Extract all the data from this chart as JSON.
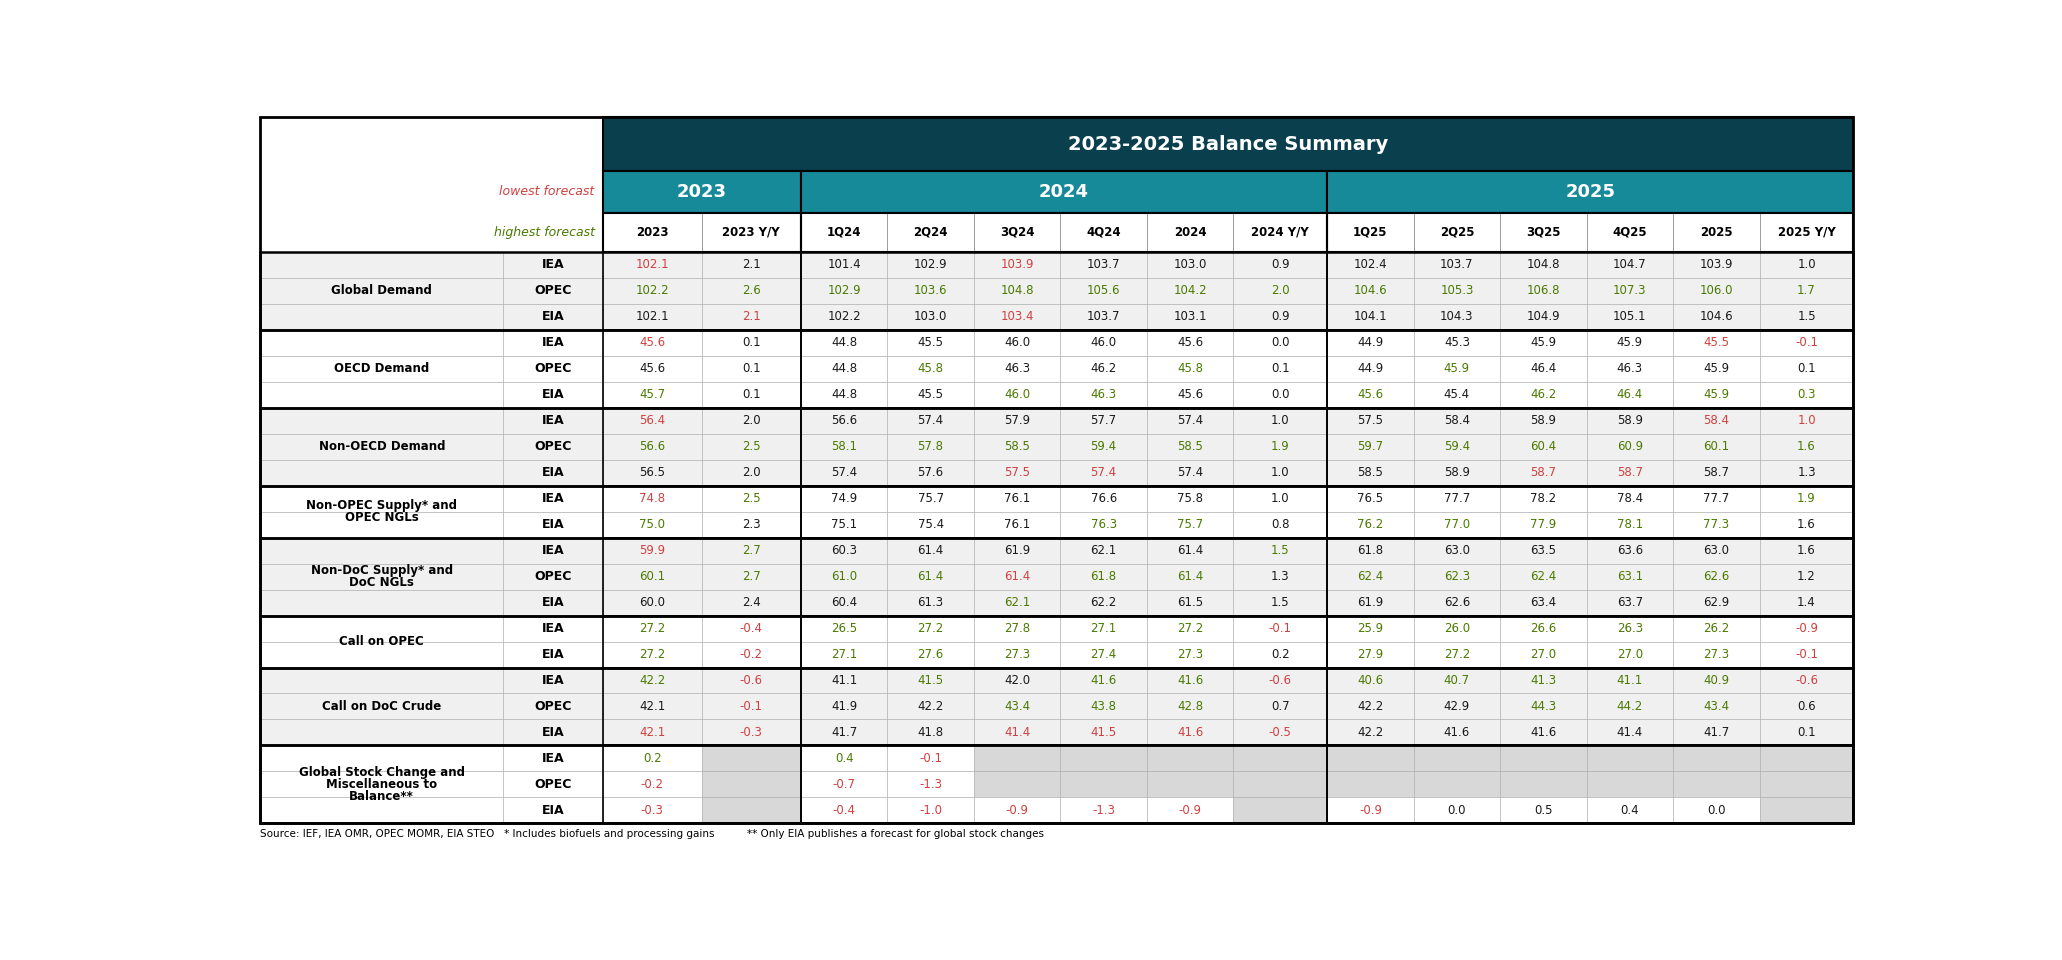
{
  "title": "2023-2025 Balance Summary",
  "lowest_label": "lowest forecast",
  "highest_label": "highest forecast",
  "sections": [
    {
      "label": "Global Demand",
      "rows": [
        {
          "agency": "IEA",
          "vals": [
            "102.1",
            "2.1",
            "101.4",
            "102.9",
            "103.9",
            "103.7",
            "103.0",
            "0.9",
            "102.4",
            "103.7",
            "104.8",
            "104.7",
            "103.9",
            "1.0"
          ],
          "colors": [
            "red",
            "black",
            "black",
            "black",
            "red",
            "black",
            "black",
            "black",
            "black",
            "black",
            "black",
            "black",
            "black",
            "black"
          ]
        },
        {
          "agency": "OPEC",
          "vals": [
            "102.2",
            "2.6",
            "102.9",
            "103.6",
            "104.8",
            "105.6",
            "104.2",
            "2.0",
            "104.6",
            "105.3",
            "106.8",
            "107.3",
            "106.0",
            "1.7"
          ],
          "colors": [
            "green",
            "green",
            "green",
            "green",
            "green",
            "green",
            "green",
            "green",
            "green",
            "green",
            "green",
            "green",
            "green",
            "green"
          ]
        },
        {
          "agency": "EIA",
          "vals": [
            "102.1",
            "2.1",
            "102.2",
            "103.0",
            "103.4",
            "103.7",
            "103.1",
            "0.9",
            "104.1",
            "104.3",
            "104.9",
            "105.1",
            "104.6",
            "1.5"
          ],
          "colors": [
            "black",
            "red",
            "black",
            "black",
            "red",
            "black",
            "black",
            "black",
            "black",
            "black",
            "black",
            "black",
            "black",
            "black"
          ]
        }
      ]
    },
    {
      "label": "OECD Demand",
      "rows": [
        {
          "agency": "IEA",
          "vals": [
            "45.6",
            "0.1",
            "44.8",
            "45.5",
            "46.0",
            "46.0",
            "45.6",
            "0.0",
            "44.9",
            "45.3",
            "45.9",
            "45.9",
            "45.5",
            "-0.1"
          ],
          "colors": [
            "red",
            "black",
            "black",
            "black",
            "black",
            "black",
            "black",
            "black",
            "black",
            "black",
            "black",
            "black",
            "red",
            "red"
          ]
        },
        {
          "agency": "OPEC",
          "vals": [
            "45.6",
            "0.1",
            "44.8",
            "45.8",
            "46.3",
            "46.2",
            "45.8",
            "0.1",
            "44.9",
            "45.9",
            "46.4",
            "46.3",
            "45.9",
            "0.1"
          ],
          "colors": [
            "black",
            "black",
            "black",
            "green",
            "black",
            "black",
            "green",
            "black",
            "black",
            "green",
            "black",
            "black",
            "black",
            "black"
          ]
        },
        {
          "agency": "EIA",
          "vals": [
            "45.7",
            "0.1",
            "44.8",
            "45.5",
            "46.0",
            "46.3",
            "45.6",
            "0.0",
            "45.6",
            "45.4",
            "46.2",
            "46.4",
            "45.9",
            "0.3"
          ],
          "colors": [
            "green",
            "black",
            "black",
            "black",
            "green",
            "green",
            "black",
            "black",
            "green",
            "black",
            "green",
            "green",
            "green",
            "green"
          ]
        }
      ]
    },
    {
      "label": "Non-OECD Demand",
      "rows": [
        {
          "agency": "IEA",
          "vals": [
            "56.4",
            "2.0",
            "56.6",
            "57.4",
            "57.9",
            "57.7",
            "57.4",
            "1.0",
            "57.5",
            "58.4",
            "58.9",
            "58.9",
            "58.4",
            "1.0"
          ],
          "colors": [
            "red",
            "black",
            "black",
            "black",
            "black",
            "black",
            "black",
            "black",
            "black",
            "black",
            "black",
            "black",
            "red",
            "red"
          ]
        },
        {
          "agency": "OPEC",
          "vals": [
            "56.6",
            "2.5",
            "58.1",
            "57.8",
            "58.5",
            "59.4",
            "58.5",
            "1.9",
            "59.7",
            "59.4",
            "60.4",
            "60.9",
            "60.1",
            "1.6"
          ],
          "colors": [
            "green",
            "green",
            "green",
            "green",
            "green",
            "green",
            "green",
            "green",
            "green",
            "green",
            "green",
            "green",
            "green",
            "green"
          ]
        },
        {
          "agency": "EIA",
          "vals": [
            "56.5",
            "2.0",
            "57.4",
            "57.6",
            "57.5",
            "57.4",
            "57.4",
            "1.0",
            "58.5",
            "58.9",
            "58.7",
            "58.7",
            "58.7",
            "1.3"
          ],
          "colors": [
            "black",
            "black",
            "black",
            "black",
            "red",
            "red",
            "black",
            "black",
            "black",
            "black",
            "red",
            "red",
            "black",
            "black"
          ]
        }
      ]
    },
    {
      "label": "Non-OPEC Supply* and\nOPEC NGLs",
      "rows": [
        {
          "agency": "IEA",
          "vals": [
            "74.8",
            "2.5",
            "74.9",
            "75.7",
            "76.1",
            "76.6",
            "75.8",
            "1.0",
            "76.5",
            "77.7",
            "78.2",
            "78.4",
            "77.7",
            "1.9"
          ],
          "colors": [
            "red",
            "green",
            "black",
            "black",
            "black",
            "black",
            "black",
            "black",
            "black",
            "black",
            "black",
            "black",
            "black",
            "green"
          ]
        },
        {
          "agency": "EIA",
          "vals": [
            "75.0",
            "2.3",
            "75.1",
            "75.4",
            "76.1",
            "76.3",
            "75.7",
            "0.8",
            "76.2",
            "77.0",
            "77.9",
            "78.1",
            "77.3",
            "1.6"
          ],
          "colors": [
            "green",
            "black",
            "black",
            "black",
            "black",
            "green",
            "green",
            "black",
            "green",
            "green",
            "green",
            "green",
            "green",
            "black"
          ]
        }
      ]
    },
    {
      "label": "Non-DoC Supply* and\nDoC NGLs",
      "rows": [
        {
          "agency": "IEA",
          "vals": [
            "59.9",
            "2.7",
            "60.3",
            "61.4",
            "61.9",
            "62.1",
            "61.4",
            "1.5",
            "61.8",
            "63.0",
            "63.5",
            "63.6",
            "63.0",
            "1.6"
          ],
          "colors": [
            "red",
            "green",
            "black",
            "black",
            "black",
            "black",
            "black",
            "green",
            "black",
            "black",
            "black",
            "black",
            "black",
            "black"
          ]
        },
        {
          "agency": "OPEC",
          "vals": [
            "60.1",
            "2.7",
            "61.0",
            "61.4",
            "61.4",
            "61.8",
            "61.4",
            "1.3",
            "62.4",
            "62.3",
            "62.4",
            "63.1",
            "62.6",
            "1.2"
          ],
          "colors": [
            "green",
            "green",
            "green",
            "green",
            "red",
            "green",
            "green",
            "black",
            "green",
            "green",
            "green",
            "green",
            "green",
            "black"
          ]
        },
        {
          "agency": "EIA",
          "vals": [
            "60.0",
            "2.4",
            "60.4",
            "61.3",
            "62.1",
            "62.2",
            "61.5",
            "1.5",
            "61.9",
            "62.6",
            "63.4",
            "63.7",
            "62.9",
            "1.4"
          ],
          "colors": [
            "black",
            "black",
            "black",
            "black",
            "green",
            "black",
            "black",
            "black",
            "black",
            "black",
            "black",
            "black",
            "black",
            "black"
          ]
        }
      ]
    },
    {
      "label": "Call on OPEC",
      "rows": [
        {
          "agency": "IEA",
          "vals": [
            "27.2",
            "-0.4",
            "26.5",
            "27.2",
            "27.8",
            "27.1",
            "27.2",
            "-0.1",
            "25.9",
            "26.0",
            "26.6",
            "26.3",
            "26.2",
            "-0.9"
          ],
          "colors": [
            "green",
            "red",
            "green",
            "green",
            "green",
            "green",
            "green",
            "red",
            "green",
            "green",
            "green",
            "green",
            "green",
            "red"
          ]
        },
        {
          "agency": "EIA",
          "vals": [
            "27.2",
            "-0.2",
            "27.1",
            "27.6",
            "27.3",
            "27.4",
            "27.3",
            "0.2",
            "27.9",
            "27.2",
            "27.0",
            "27.0",
            "27.3",
            "-0.1"
          ],
          "colors": [
            "green",
            "red",
            "green",
            "green",
            "green",
            "green",
            "green",
            "black",
            "green",
            "green",
            "green",
            "green",
            "green",
            "red"
          ]
        }
      ]
    },
    {
      "label": "Call on DoC Crude",
      "rows": [
        {
          "agency": "IEA",
          "vals": [
            "42.2",
            "-0.6",
            "41.1",
            "41.5",
            "42.0",
            "41.6",
            "41.6",
            "-0.6",
            "40.6",
            "40.7",
            "41.3",
            "41.1",
            "40.9",
            "-0.6"
          ],
          "colors": [
            "green",
            "red",
            "black",
            "green",
            "black",
            "green",
            "green",
            "red",
            "green",
            "green",
            "green",
            "green",
            "green",
            "red"
          ]
        },
        {
          "agency": "OPEC",
          "vals": [
            "42.1",
            "-0.1",
            "41.9",
            "42.2",
            "43.4",
            "43.8",
            "42.8",
            "0.7",
            "42.2",
            "42.9",
            "44.3",
            "44.2",
            "43.4",
            "0.6"
          ],
          "colors": [
            "black",
            "red",
            "black",
            "black",
            "green",
            "green",
            "green",
            "black",
            "black",
            "black",
            "green",
            "green",
            "green",
            "black"
          ]
        },
        {
          "agency": "EIA",
          "vals": [
            "42.1",
            "-0.3",
            "41.7",
            "41.8",
            "41.4",
            "41.5",
            "41.6",
            "-0.5",
            "42.2",
            "41.6",
            "41.6",
            "41.4",
            "41.7",
            "0.1"
          ],
          "colors": [
            "red",
            "red",
            "black",
            "black",
            "red",
            "red",
            "red",
            "red",
            "black",
            "black",
            "black",
            "black",
            "black",
            "black"
          ]
        }
      ]
    },
    {
      "label": "Global Stock Change and\nMiscellaneous to\nBalance**",
      "rows": [
        {
          "agency": "IEA",
          "vals": [
            "0.2",
            "",
            "0.4",
            "-0.1",
            "",
            "",
            "",
            "",
            "",
            "",
            "",
            "",
            "",
            ""
          ],
          "colors": [
            "green",
            "black",
            "green",
            "red",
            "black",
            "black",
            "black",
            "black",
            "black",
            "black",
            "black",
            "black",
            "black",
            "black"
          ],
          "gray_cols": [
            1,
            4,
            5,
            6,
            7,
            8,
            9,
            10,
            11,
            12,
            13
          ]
        },
        {
          "agency": "OPEC",
          "vals": [
            "-0.2",
            "",
            "-0.7",
            "-1.3",
            "",
            "",
            "",
            "",
            "",
            "",
            "",
            "",
            "",
            ""
          ],
          "colors": [
            "red",
            "black",
            "red",
            "red",
            "black",
            "black",
            "black",
            "black",
            "black",
            "black",
            "black",
            "black",
            "black",
            "black"
          ],
          "gray_cols": [
            1,
            4,
            5,
            6,
            7,
            8,
            9,
            10,
            11,
            12,
            13
          ]
        },
        {
          "agency": "EIA",
          "vals": [
            "-0.3",
            "",
            "-0.4",
            "-1.0",
            "-0.9",
            "-1.3",
            "-0.9",
            "",
            "-0.9",
            "0.0",
            "0.5",
            "0.4",
            "0.0",
            ""
          ],
          "colors": [
            "red",
            "black",
            "red",
            "red",
            "red",
            "red",
            "red",
            "black",
            "red",
            "black",
            "black",
            "black",
            "black",
            "black"
          ],
          "gray_cols": [
            1,
            7,
            13
          ]
        }
      ]
    }
  ],
  "footnote": "Source: IEF, IEA OMR, OPEC MOMR, EIA STEO   * Includes biofuels and processing gains          ** Only EIA publishes a forecast for global stock changes",
  "color_red": "#d04040",
  "color_green": "#4a7a00",
  "color_black": "#1a1a1a",
  "header_dark_bg": "#0a3f4e",
  "header_teal_bg": "#178a9a",
  "gray_cell_bg": "#d8d8d8",
  "light_gray_bg": "#f0f0f0"
}
